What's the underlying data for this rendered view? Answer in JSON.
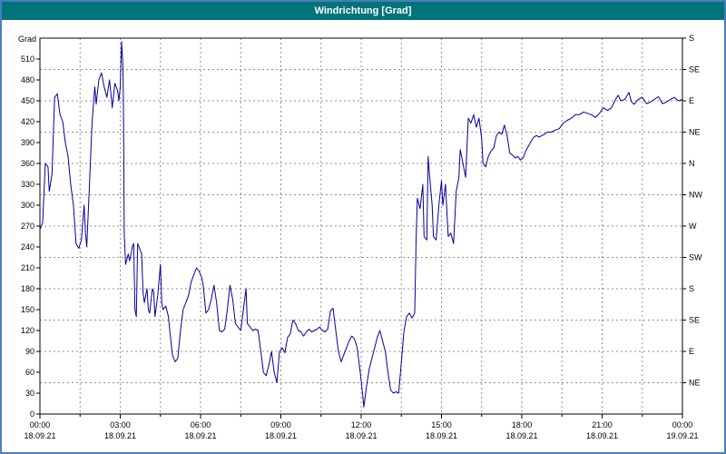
{
  "window": {
    "title": "Windrichtung [Grad]"
  },
  "colors": {
    "frame": "#4a7dbb",
    "titlebar_bg": "#00737b",
    "titlebar_text": "#ffffff",
    "plot_bg": "#ffffff",
    "grid": "#8f8f8f",
    "axis": "#000000",
    "line": "#0000a0",
    "label_text": "#000000"
  },
  "chart_data": {
    "type": "line",
    "title": "Windrichtung [Grad]",
    "ylabel": "Grad",
    "ylim": [
      0,
      540
    ],
    "xlim_hours": [
      0,
      24
    ],
    "y_grid_interval": 45,
    "x_grid_interval_hours": 1.5,
    "grid": "dashed",
    "legend_position": "none",
    "y_ticks_left": [
      510,
      480,
      450,
      420,
      390,
      360,
      330,
      300,
      270,
      240,
      210,
      180,
      150,
      120,
      90,
      60,
      30,
      0
    ],
    "right_axis": {
      "interval_deg": 45,
      "top_value": 540,
      "labels_top_to_bottom": [
        "S",
        "SE",
        "E",
        "NE",
        "N",
        "NW",
        "W",
        "SW",
        "S",
        "SE",
        "E",
        "NE"
      ]
    },
    "x_ticks": [
      {
        "hour": 0,
        "time": "00:00",
        "date": "18.09.21"
      },
      {
        "hour": 3,
        "time": "03:00",
        "date": "18.09.21"
      },
      {
        "hour": 6,
        "time": "06:00",
        "date": "18.09.21"
      },
      {
        "hour": 9,
        "time": "09:00",
        "date": "18.09.21"
      },
      {
        "hour": 12,
        "time": "12:00",
        "date": "18.09.21"
      },
      {
        "hour": 15,
        "time": "15:00",
        "date": "18.09.21"
      },
      {
        "hour": 18,
        "time": "18:00",
        "date": "18.09.21"
      },
      {
        "hour": 21,
        "time": "21:00",
        "date": "18.09.21"
      },
      {
        "hour": 24,
        "time": "00:00",
        "date": "19.09.21"
      }
    ],
    "series": [
      {
        "name": "Windrichtung",
        "points": [
          [
            0.0,
            265
          ],
          [
            0.1,
            275
          ],
          [
            0.2,
            360
          ],
          [
            0.3,
            355
          ],
          [
            0.35,
            320
          ],
          [
            0.45,
            345
          ],
          [
            0.55,
            455
          ],
          [
            0.65,
            460
          ],
          [
            0.75,
            430
          ],
          [
            0.85,
            420
          ],
          [
            0.95,
            390
          ],
          [
            1.05,
            370
          ],
          [
            1.15,
            330
          ],
          [
            1.25,
            300
          ],
          [
            1.35,
            245
          ],
          [
            1.45,
            238
          ],
          [
            1.55,
            250
          ],
          [
            1.65,
            300
          ],
          [
            1.7,
            260
          ],
          [
            1.75,
            240
          ],
          [
            1.85,
            330
          ],
          [
            1.95,
            420
          ],
          [
            2.05,
            470
          ],
          [
            2.1,
            445
          ],
          [
            2.2,
            480
          ],
          [
            2.3,
            490
          ],
          [
            2.4,
            470
          ],
          [
            2.5,
            455
          ],
          [
            2.6,
            480
          ],
          [
            2.7,
            440
          ],
          [
            2.8,
            475
          ],
          [
            2.9,
            465
          ],
          [
            2.95,
            450
          ],
          [
            3.0,
            470
          ],
          [
            3.05,
            535
          ],
          [
            3.1,
            500
          ],
          [
            3.12,
            450
          ],
          [
            3.15,
            260
          ],
          [
            3.2,
            215
          ],
          [
            3.3,
            230
          ],
          [
            3.35,
            220
          ],
          [
            3.45,
            240
          ],
          [
            3.5,
            245
          ],
          [
            3.55,
            150
          ],
          [
            3.6,
            140
          ],
          [
            3.65,
            245
          ],
          [
            3.7,
            240
          ],
          [
            3.8,
            230
          ],
          [
            3.85,
            175
          ],
          [
            3.9,
            160
          ],
          [
            4.0,
            180
          ],
          [
            4.05,
            150
          ],
          [
            4.1,
            145
          ],
          [
            4.2,
            180
          ],
          [
            4.25,
            175
          ],
          [
            4.3,
            140
          ],
          [
            4.4,
            170
          ],
          [
            4.5,
            215
          ],
          [
            4.55,
            160
          ],
          [
            4.6,
            150
          ],
          [
            4.7,
            155
          ],
          [
            4.8,
            140
          ],
          [
            4.85,
            120
          ],
          [
            4.95,
            85
          ],
          [
            5.05,
            75
          ],
          [
            5.15,
            80
          ],
          [
            5.25,
            120
          ],
          [
            5.35,
            150
          ],
          [
            5.45,
            160
          ],
          [
            5.55,
            170
          ],
          [
            5.65,
            190
          ],
          [
            5.75,
            200
          ],
          [
            5.85,
            210
          ],
          [
            5.95,
            205
          ],
          [
            6.05,
            195
          ],
          [
            6.1,
            185
          ],
          [
            6.2,
            145
          ],
          [
            6.3,
            150
          ],
          [
            6.4,
            165
          ],
          [
            6.5,
            185
          ],
          [
            6.6,
            160
          ],
          [
            6.7,
            120
          ],
          [
            6.8,
            118
          ],
          [
            6.9,
            122
          ],
          [
            7.0,
            150
          ],
          [
            7.1,
            185
          ],
          [
            7.2,
            165
          ],
          [
            7.3,
            130
          ],
          [
            7.4,
            125
          ],
          [
            7.5,
            120
          ],
          [
            7.6,
            150
          ],
          [
            7.7,
            180
          ],
          [
            7.75,
            130
          ],
          [
            7.85,
            125
          ],
          [
            7.95,
            120
          ],
          [
            8.05,
            122
          ],
          [
            8.15,
            120
          ],
          [
            8.25,
            90
          ],
          [
            8.35,
            60
          ],
          [
            8.45,
            55
          ],
          [
            8.55,
            70
          ],
          [
            8.65,
            90
          ],
          [
            8.75,
            60
          ],
          [
            8.85,
            45
          ],
          [
            8.95,
            90
          ],
          [
            9.05,
            95
          ],
          [
            9.15,
            88
          ],
          [
            9.25,
            110
          ],
          [
            9.35,
            115
          ],
          [
            9.45,
            135
          ],
          [
            9.55,
            130
          ],
          [
            9.65,
            120
          ],
          [
            9.75,
            118
          ],
          [
            9.85,
            112
          ],
          [
            9.95,
            118
          ],
          [
            10.05,
            122
          ],
          [
            10.15,
            118
          ],
          [
            10.25,
            120
          ],
          [
            10.35,
            122
          ],
          [
            10.45,
            125
          ],
          [
            10.55,
            120
          ],
          [
            10.65,
            118
          ],
          [
            10.75,
            122
          ],
          [
            10.85,
            148
          ],
          [
            10.95,
            152
          ],
          [
            11.05,
            120
          ],
          [
            11.15,
            90
          ],
          [
            11.25,
            75
          ],
          [
            11.35,
            85
          ],
          [
            11.45,
            95
          ],
          [
            11.55,
            105
          ],
          [
            11.65,
            112
          ],
          [
            11.75,
            108
          ],
          [
            11.85,
            95
          ],
          [
            11.95,
            65
          ],
          [
            12.05,
            30
          ],
          [
            12.1,
            10
          ],
          [
            12.2,
            40
          ],
          [
            12.3,
            65
          ],
          [
            12.4,
            80
          ],
          [
            12.5,
            95
          ],
          [
            12.6,
            110
          ],
          [
            12.7,
            120
          ],
          [
            12.8,
            105
          ],
          [
            12.9,
            90
          ],
          [
            13.0,
            60
          ],
          [
            13.1,
            35
          ],
          [
            13.2,
            30
          ],
          [
            13.3,
            32
          ],
          [
            13.4,
            30
          ],
          [
            13.5,
            75
          ],
          [
            13.6,
            120
          ],
          [
            13.7,
            140
          ],
          [
            13.8,
            145
          ],
          [
            13.9,
            138
          ],
          [
            14.0,
            145
          ],
          [
            14.05,
            250
          ],
          [
            14.1,
            310
          ],
          [
            14.2,
            295
          ],
          [
            14.3,
            330
          ],
          [
            14.35,
            255
          ],
          [
            14.45,
            250
          ],
          [
            14.5,
            370
          ],
          [
            14.55,
            345
          ],
          [
            14.65,
            300
          ],
          [
            14.7,
            255
          ],
          [
            14.8,
            250
          ],
          [
            14.9,
            300
          ],
          [
            15.0,
            335
          ],
          [
            15.05,
            300
          ],
          [
            15.15,
            330
          ],
          [
            15.25,
            255
          ],
          [
            15.35,
            260
          ],
          [
            15.45,
            245
          ],
          [
            15.55,
            320
          ],
          [
            15.65,
            340
          ],
          [
            15.7,
            380
          ],
          [
            15.8,
            360
          ],
          [
            15.9,
            340
          ],
          [
            16.0,
            425
          ],
          [
            16.1,
            418
          ],
          [
            16.2,
            430
          ],
          [
            16.3,
            412
          ],
          [
            16.4,
            425
          ],
          [
            16.5,
            395
          ],
          [
            16.55,
            360
          ],
          [
            16.65,
            355
          ],
          [
            16.75,
            370
          ],
          [
            16.85,
            378
          ],
          [
            16.95,
            382
          ],
          [
            17.05,
            400
          ],
          [
            17.15,
            405
          ],
          [
            17.25,
            402
          ],
          [
            17.35,
            415
          ],
          [
            17.45,
            400
          ],
          [
            17.55,
            375
          ],
          [
            17.65,
            372
          ],
          [
            17.75,
            368
          ],
          [
            17.85,
            370
          ],
          [
            17.95,
            365
          ],
          [
            18.05,
            368
          ],
          [
            18.15,
            378
          ],
          [
            18.25,
            385
          ],
          [
            18.35,
            392
          ],
          [
            18.45,
            398
          ],
          [
            18.55,
            400
          ],
          [
            18.65,
            398
          ],
          [
            18.75,
            400
          ],
          [
            18.85,
            402
          ],
          [
            18.95,
            405
          ],
          [
            19.1,
            405
          ],
          [
            19.25,
            408
          ],
          [
            19.4,
            410
          ],
          [
            19.55,
            418
          ],
          [
            19.7,
            422
          ],
          [
            19.85,
            425
          ],
          [
            20.0,
            430
          ],
          [
            20.15,
            430
          ],
          [
            20.3,
            434
          ],
          [
            20.45,
            432
          ],
          [
            20.6,
            430
          ],
          [
            20.75,
            426
          ],
          [
            20.9,
            432
          ],
          [
            21.05,
            440
          ],
          [
            21.2,
            436
          ],
          [
            21.35,
            440
          ],
          [
            21.5,
            452
          ],
          [
            21.6,
            458
          ],
          [
            21.7,
            450
          ],
          [
            21.85,
            452
          ],
          [
            22.0,
            462
          ],
          [
            22.1,
            448
          ],
          [
            22.2,
            445
          ],
          [
            22.35,
            452
          ],
          [
            22.5,
            455
          ],
          [
            22.65,
            446
          ],
          [
            22.8,
            448
          ],
          [
            22.95,
            452
          ],
          [
            23.1,
            456
          ],
          [
            23.25,
            446
          ],
          [
            23.4,
            448
          ],
          [
            23.55,
            452
          ],
          [
            23.7,
            455
          ],
          [
            23.85,
            450
          ],
          [
            24.0,
            452
          ]
        ]
      }
    ]
  }
}
